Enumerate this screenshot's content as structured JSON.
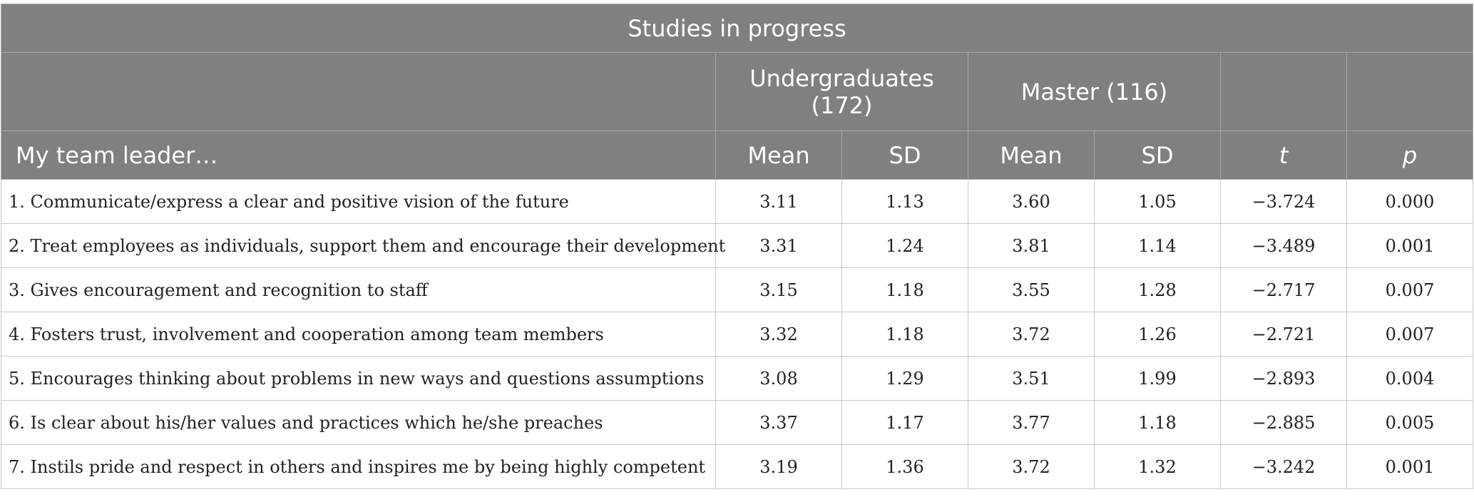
{
  "table": {
    "title": "Studies in progress",
    "groups": {
      "undergraduates": "Undergraduates (172)",
      "master": "Master (116)"
    },
    "columns": {
      "item": "My team leader…",
      "ug_mean": "Mean",
      "ug_sd": "SD",
      "m_mean": "Mean",
      "m_sd": "SD",
      "t": "t",
      "p": "p"
    },
    "rows": [
      [
        "1. Communicate/express a clear and positive vision of the future",
        "3.11",
        "1.13",
        "3.60",
        "1.05",
        "−3.724",
        "0.000"
      ],
      [
        "2. Treat employees as individuals, support them and encourage their development",
        "3.31",
        "1.24",
        "3.81",
        "1.14",
        "−3.489",
        "0.001"
      ],
      [
        "3. Gives encouragement and recognition to staff",
        "3.15",
        "1.18",
        "3.55",
        "1.28",
        "−2.717",
        "0.007"
      ],
      [
        "4. Fosters trust, involvement and cooperation among team members",
        "3.32",
        "1.18",
        "3.72",
        "1.26",
        "−2.721",
        "0.007"
      ],
      [
        "5. Encourages thinking about problems in new ways and questions assumptions",
        "3.08",
        "1.29",
        "3.51",
        "1.99",
        "−2.893",
        "0.004"
      ],
      [
        "6. Is clear about his/her values and practices which he/she preaches",
        "3.37",
        "1.17",
        "3.77",
        "1.18",
        "−2.885",
        "0.005"
      ],
      [
        "7. Instils pride and respect in others and inspires me by being highly competent",
        "3.19",
        "1.36",
        "3.72",
        "1.32",
        "−3.242",
        "0.001"
      ]
    ]
  }
}
